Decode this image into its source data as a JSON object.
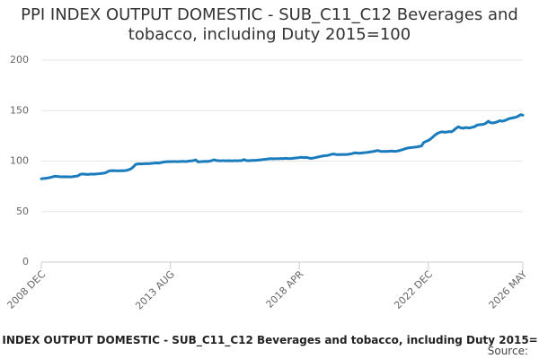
{
  "chart_data": {
    "type": "line",
    "title": "PPI INDEX OUTPUT DOMESTIC - SUB_C11_C12 Beverages and tobacco, including Duty 2015=100",
    "source_label": "Source:",
    "categories": [
      "2008 DEC",
      null,
      null,
      null,
      null,
      null,
      null,
      null,
      null,
      null,
      null,
      null,
      null,
      null,
      null,
      null,
      null,
      null,
      null,
      null,
      null,
      null,
      null,
      null,
      null,
      null,
      null,
      null,
      null,
      null,
      null,
      null,
      null,
      null,
      null,
      null,
      null,
      null,
      null,
      null,
      null,
      null,
      null,
      null,
      null,
      null,
      null,
      null,
      null,
      null,
      null,
      null,
      null,
      null,
      null,
      null,
      "2013 AUG",
      null,
      null,
      null,
      null,
      null,
      null,
      null,
      null,
      null,
      null,
      null,
      null,
      null,
      null,
      null,
      null,
      null,
      null,
      null,
      null,
      null,
      null,
      null,
      null,
      null,
      null,
      null,
      null,
      null,
      null,
      null,
      null,
      null,
      null,
      null,
      null,
      null,
      null,
      null,
      null,
      null,
      null,
      null,
      null,
      null,
      null,
      null,
      null,
      null,
      null,
      null,
      null,
      null,
      null,
      null,
      "2018 APR",
      null,
      null,
      null,
      null,
      null,
      null,
      null,
      null,
      null,
      null,
      null,
      null,
      null,
      null,
      null,
      null,
      null,
      null,
      null,
      null,
      null,
      null,
      null,
      null,
      null,
      null,
      null,
      null,
      null,
      null,
      null,
      null,
      null,
      null,
      null,
      null,
      null,
      null,
      null,
      null,
      null,
      null,
      null,
      null,
      null,
      null,
      null,
      null,
      null,
      null,
      null,
      null,
      null,
      null,
      null,
      "2022 DEC",
      null,
      null,
      null,
      null,
      null,
      null,
      null,
      null,
      null,
      null,
      null,
      null,
      null,
      null,
      null,
      null,
      null,
      null,
      null,
      null,
      null,
      null,
      null,
      null,
      null,
      null,
      null,
      null,
      null,
      null,
      null,
      null,
      null,
      null,
      null,
      null,
      null,
      null,
      null,
      null,
      "2026 MAY"
    ],
    "series": [
      {
        "color": "#1a7bbd",
        "values": [
          82.5,
          82.8,
          83.0,
          83.4,
          83.8,
          84.5,
          85.0,
          84.8,
          84.6,
          84.5,
          84.6,
          84.4,
          84.5,
          84.3,
          84.8,
          85.0,
          85.5,
          87.0,
          87.2,
          87.0,
          86.8,
          87.0,
          87.2,
          87.0,
          87.3,
          87.5,
          87.8,
          88.0,
          88.5,
          89.8,
          90.5,
          90.6,
          90.5,
          90.3,
          90.4,
          90.6,
          90.5,
          90.8,
          91.5,
          92.5,
          94.5,
          96.8,
          97.2,
          97.3,
          97.2,
          97.5,
          97.4,
          97.6,
          97.8,
          98.0,
          98.2,
          98.0,
          98.5,
          99.0,
          99.3,
          99.5,
          99.4,
          99.6,
          99.5,
          99.4,
          99.6,
          99.8,
          99.7,
          99.6,
          100.0,
          100.2,
          100.5,
          101.2,
          99.2,
          99.4,
          99.6,
          99.8,
          99.7,
          99.9,
          100.5,
          101.3,
          100.6,
          100.4,
          100.3,
          100.5,
          100.2,
          100.4,
          100.3,
          100.2,
          100.5,
          100.3,
          100.4,
          100.6,
          101.5,
          100.6,
          100.4,
          100.6,
          100.8,
          100.7,
          101.0,
          101.2,
          101.5,
          101.8,
          102.0,
          102.3,
          102.4,
          102.2,
          102.5,
          102.3,
          102.6,
          102.4,
          102.8,
          102.6,
          102.5,
          102.7,
          103.0,
          103.2,
          103.5,
          103.8,
          103.4,
          103.6,
          103.2,
          102.6,
          103.0,
          103.5,
          104.0,
          104.5,
          105.0,
          105.3,
          105.5,
          106.0,
          106.8,
          107.0,
          106.5,
          106.4,
          106.5,
          106.6,
          106.5,
          106.7,
          107.0,
          107.5,
          108.2,
          108.0,
          107.8,
          108.0,
          108.3,
          108.5,
          108.8,
          109.2,
          109.5,
          110.0,
          110.5,
          109.8,
          109.5,
          109.7,
          109.6,
          109.8,
          110.0,
          109.7,
          109.8,
          110.2,
          110.8,
          111.5,
          112.3,
          113.0,
          113.2,
          113.5,
          113.8,
          114.0,
          114.5,
          115.0,
          118.5,
          119.5,
          120.5,
          122.0,
          124.0,
          126.0,
          127.5,
          128.5,
          129.0,
          128.6,
          128.8,
          129.2,
          129.0,
          130.5,
          132.5,
          134.0,
          133.0,
          132.5,
          133.2,
          133.0,
          132.8,
          133.5,
          134.0,
          135.5,
          136.0,
          136.2,
          136.5,
          137.5,
          139.5,
          138.0,
          137.8,
          138.2,
          139.0,
          140.0,
          139.5,
          140.0,
          141.0,
          142.0,
          142.5,
          143.0,
          143.5,
          144.5,
          146.0,
          145.5
        ]
      }
    ],
    "ylim": [
      0,
      200
    ],
    "yticks": [
      0,
      50,
      100,
      150,
      200
    ],
    "grid": true
  }
}
